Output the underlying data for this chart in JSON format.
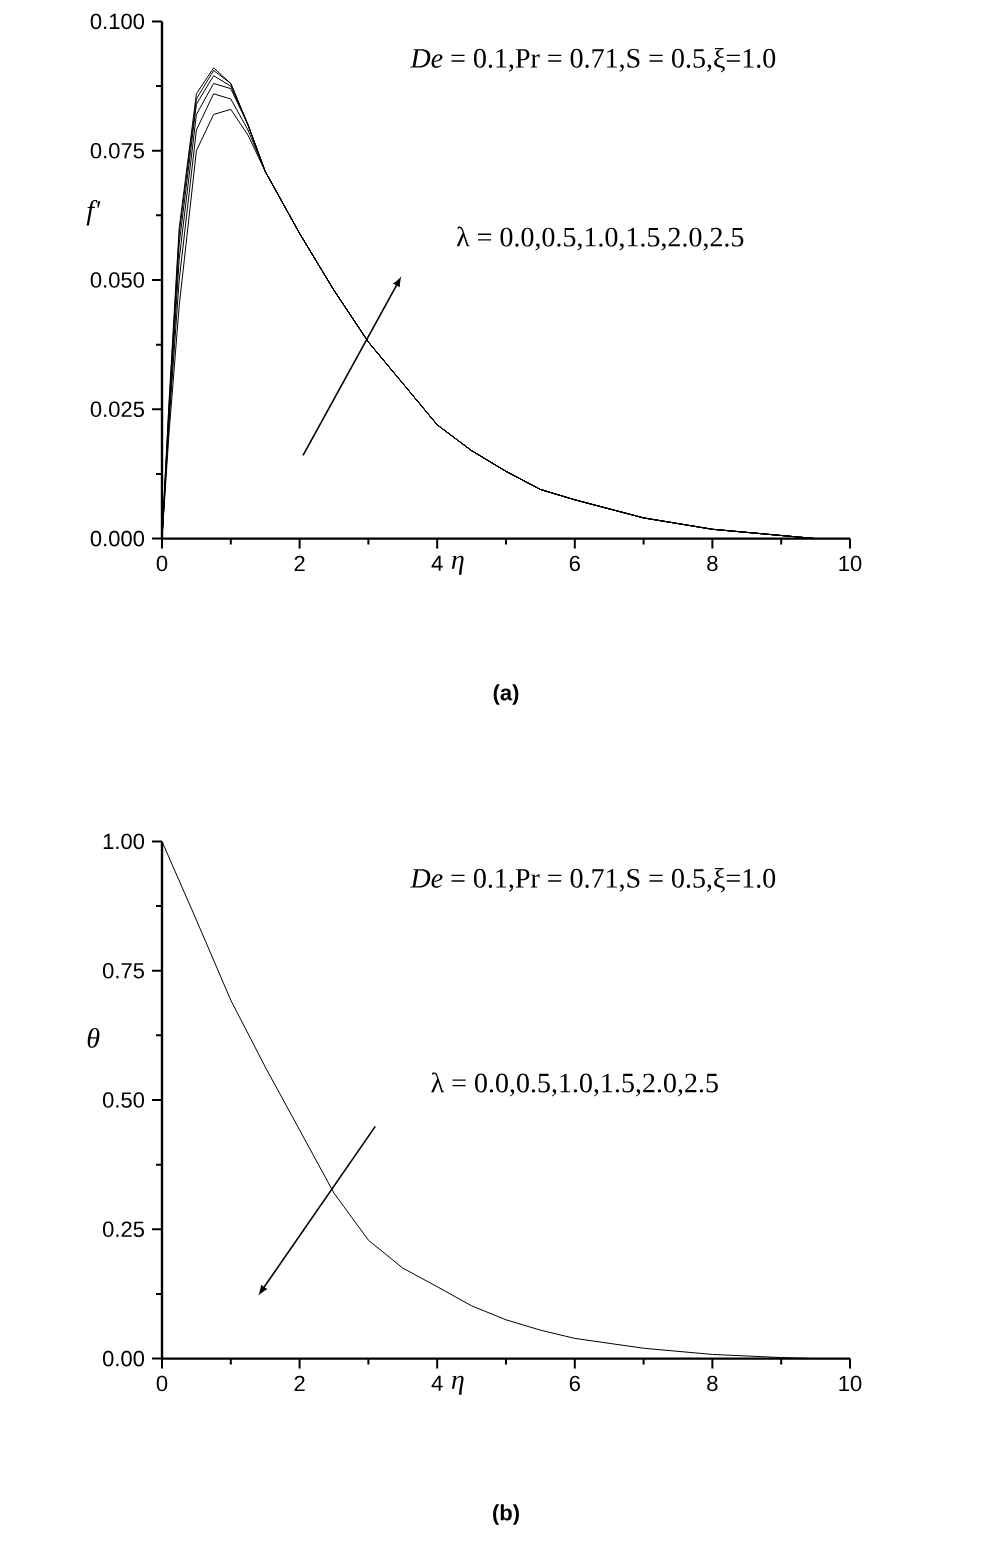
{
  "chart_data": [
    {
      "type": "line",
      "title": "(a)",
      "xlabel": "η",
      "ylabel": "f'",
      "annotations": [
        "*De* = 0.1,Pr = 0.71,S = 0.5,ξ=1.0",
        "λ = 0.0,0.5,1.0,1.5,2.0,2.5"
      ],
      "x": [
        0,
        0.1,
        0.25,
        0.5,
        0.75,
        1,
        1.25,
        1.5,
        2,
        2.5,
        3,
        3.5,
        4,
        4.5,
        5,
        5.5,
        6,
        7,
        8,
        9,
        9.5
      ],
      "series": [
        {
          "color": "#000000",
          "values": [
            0,
            0.02,
            0.045,
            0.075,
            0.082,
            0.083,
            0.078,
            0.071,
            0.059,
            0.048,
            0.038,
            0.03,
            0.022,
            0.017,
            0.013,
            0.0095,
            0.0075,
            0.004,
            0.0018,
            0.0006,
            0
          ]
        },
        {
          "color": "#000000",
          "values": [
            0,
            0.022,
            0.05,
            0.079,
            0.086,
            0.085,
            0.079,
            0.071,
            0.059,
            0.048,
            0.038,
            0.03,
            0.022,
            0.017,
            0.013,
            0.0095,
            0.0075,
            0.004,
            0.0018,
            0.0006,
            0
          ]
        },
        {
          "color": "#000000",
          "values": [
            0,
            0.023,
            0.054,
            0.082,
            0.088,
            0.087,
            0.08,
            0.071,
            0.059,
            0.048,
            0.038,
            0.03,
            0.022,
            0.017,
            0.013,
            0.0095,
            0.0075,
            0.004,
            0.0018,
            0.0006,
            0
          ]
        },
        {
          "color": "#000000",
          "values": [
            0,
            0.024,
            0.057,
            0.084,
            0.0895,
            0.0875,
            0.08,
            0.071,
            0.059,
            0.048,
            0.038,
            0.03,
            0.022,
            0.017,
            0.013,
            0.0095,
            0.0075,
            0.004,
            0.0018,
            0.0006,
            0
          ]
        },
        {
          "color": "#000000",
          "values": [
            0,
            0.025,
            0.059,
            0.085,
            0.0905,
            0.088,
            0.08,
            0.071,
            0.059,
            0.048,
            0.038,
            0.03,
            0.022,
            0.017,
            0.013,
            0.0095,
            0.0075,
            0.004,
            0.0018,
            0.0006,
            0
          ]
        },
        {
          "color": "#000000",
          "values": [
            0,
            0.026,
            0.06,
            0.086,
            0.091,
            0.088,
            0.08,
            0.071,
            0.059,
            0.048,
            0.038,
            0.03,
            0.022,
            0.017,
            0.013,
            0.0095,
            0.0075,
            0.004,
            0.0018,
            0.0006,
            0
          ]
        }
      ],
      "xlim": [
        0,
        10
      ],
      "ylim": [
        0,
        0.1
      ],
      "xticks": [
        0,
        2,
        4,
        6,
        8,
        10
      ],
      "yticks": [
        {
          "value": 0,
          "label": "0.000"
        },
        {
          "value": 0.025,
          "label": "0.025"
        },
        {
          "value": 0.05,
          "label": "0.050"
        },
        {
          "value": 0.075,
          "label": "0.075"
        },
        {
          "value": 0.1,
          "label": "0.100"
        }
      ]
    },
    {
      "type": "line",
      "title": "(b)",
      "xlabel": "η",
      "ylabel": "θ",
      "annotations": [
        "*De* = 0.1,Pr = 0.71,S = 0.5,ξ=1.0",
        "λ = 0.0,0.5,1.0,1.5,2.0,2.5"
      ],
      "x": [
        0,
        0.5,
        1,
        1.5,
        2,
        2.5,
        3,
        3.5,
        4,
        4.5,
        5,
        5.5,
        6,
        7,
        8,
        9,
        9.5
      ],
      "series": [
        {
          "color": "#000000",
          "values": [
            1,
            0.848,
            0.693,
            0.564,
            0.442,
            0.32,
            0.229,
            0.175,
            0.139,
            0.102,
            0.075,
            0.055,
            0.039,
            0.02,
            0.008,
            0.002,
            0
          ]
        }
      ],
      "xlim": [
        0,
        10
      ],
      "ylim": [
        0,
        1
      ],
      "xticks": [
        0,
        2,
        4,
        6,
        8,
        10
      ],
      "yticks": [
        {
          "value": 0,
          "label": "0.00"
        },
        {
          "value": 0.25,
          "label": "0.25"
        },
        {
          "value": 0.5,
          "label": "0.50"
        },
        {
          "value": 0.75,
          "label": "0.75"
        },
        {
          "value": 1,
          "label": "1.00"
        }
      ]
    }
  ]
}
